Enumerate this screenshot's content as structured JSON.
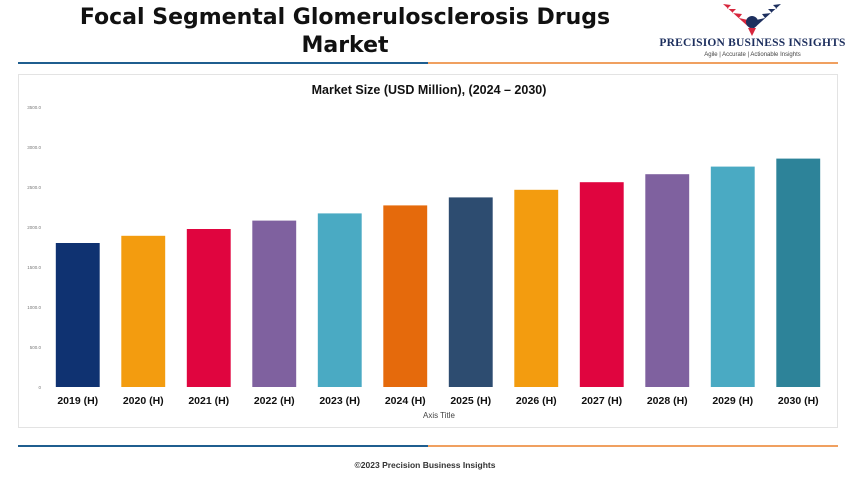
{
  "header": {
    "title": "Focal Segmental Glomerulosclerosis Drugs Market"
  },
  "logo": {
    "name": "PRECISION BUSINESS INSIGHTS",
    "tagline": "Agile | Accurate | Actionable Insights",
    "icon": "eagle-logo-icon",
    "colors": {
      "navy": "#1d2f5e",
      "red": "#d7263d"
    }
  },
  "chart_data": {
    "type": "bar",
    "title": "Market Size (USD Million), (2024 – 2030)",
    "xlabel": "Axis Title",
    "ylabel": "",
    "categories": [
      "2019 (H)",
      "2020 (H)",
      "2021 (H)",
      "2022 (H)",
      "2023 (H)",
      "2024 (H)",
      "2025 (H)",
      "2026 (H)",
      "2027 (H)",
      "2028 (H)",
      "2029 (H)",
      "2030 (H)"
    ],
    "values": [
      1800,
      1890,
      1975,
      2080,
      2170,
      2270,
      2370,
      2465,
      2560,
      2660,
      2755,
      2855
    ],
    "ylim": [
      0,
      3500
    ],
    "ytick_labels": [
      "0",
      "500.0",
      "1000.0",
      "1500.0",
      "2000.0",
      "2500.0",
      "3000.0",
      "3500.0"
    ],
    "colors": [
      "#0f3271",
      "#f39c0f",
      "#e0053f",
      "#7f619f",
      "#4aaac3",
      "#e56a0c",
      "#2d4c70",
      "#f39c0f",
      "#e0053f",
      "#7f619f",
      "#4aaac3",
      "#2d8399"
    ],
    "grid": false,
    "legend": "none"
  },
  "footer": {
    "copyright": "©2023 Precision Business Insights"
  },
  "accent_colors": {
    "blue": "#1f5e8f",
    "orange": "#f0a060"
  }
}
